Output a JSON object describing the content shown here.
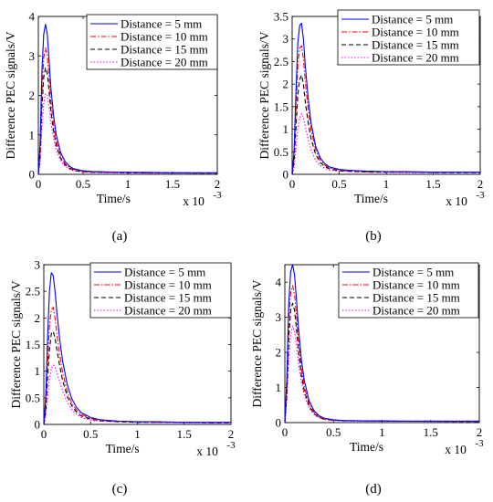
{
  "figure": {
    "legend_entries": [
      "Distance = 5 mm",
      "Distance = 10 mm",
      "Distance = 15 mm",
      "Distance = 20 mm"
    ],
    "series_colors": [
      "#0000ff",
      "#ff0000",
      "#000000",
      "#ff00ff"
    ],
    "series_dash": [
      "solid",
      "dashdot",
      "dashed",
      "dotted"
    ]
  },
  "chart_data": [
    {
      "type": "line",
      "panel_label": "(a)",
      "ylabel": "Difference PEC signals/V",
      "xlabel": "Time/s",
      "x_multiplier": "x 10",
      "x_multiplier_exp": "-3",
      "xlim": [
        0,
        2
      ],
      "ylim": [
        0,
        4
      ],
      "xticks": [
        "0",
        "0.5",
        "1",
        "1.5",
        "2"
      ],
      "yticks": [
        "0",
        "1",
        "2",
        "3",
        "4"
      ],
      "x": [
        0,
        0.02,
        0.04,
        0.06,
        0.08,
        0.1,
        0.12,
        0.14,
        0.17,
        0.2,
        0.25,
        0.3,
        0.35,
        0.4,
        0.5,
        0.6,
        0.8,
        1.0,
        1.2,
        1.5,
        1.8,
        2.0
      ],
      "series": [
        {
          "name": "Distance = 5 mm",
          "values": [
            0,
            0.8,
            2.6,
            3.55,
            3.8,
            3.55,
            2.9,
            2.2,
            1.5,
            1.0,
            0.55,
            0.32,
            0.2,
            0.14,
            0.09,
            0.07,
            0.06,
            0.05,
            0.05,
            0.04,
            0.04,
            0.04
          ]
        },
        {
          "name": "Distance = 10 mm",
          "values": [
            0,
            0.6,
            2.1,
            2.95,
            3.2,
            3.0,
            2.45,
            1.85,
            1.25,
            0.85,
            0.46,
            0.27,
            0.17,
            0.12,
            0.08,
            0.06,
            0.05,
            0.05,
            0.04,
            0.04,
            0.04,
            0.04
          ]
        },
        {
          "name": "Distance = 15 mm",
          "values": [
            0,
            0.45,
            1.7,
            2.45,
            2.7,
            2.55,
            2.1,
            1.6,
            1.1,
            0.74,
            0.4,
            0.24,
            0.15,
            0.1,
            0.07,
            0.05,
            0.05,
            0.04,
            0.04,
            0.04,
            0.03,
            0.03
          ]
        },
        {
          "name": "Distance = 20 mm",
          "values": [
            0,
            0.3,
            1.15,
            1.8,
            2.05,
            2.0,
            1.7,
            1.3,
            0.92,
            0.62,
            0.34,
            0.2,
            0.13,
            0.09,
            0.06,
            0.05,
            0.04,
            0.04,
            0.03,
            0.03,
            0.03,
            0.03
          ]
        }
      ]
    },
    {
      "type": "line",
      "panel_label": "(b)",
      "ylabel": "Difference PEC signals/V",
      "xlabel": "Time/s",
      "x_multiplier": "x 10",
      "x_multiplier_exp": "-3",
      "xlim": [
        0,
        2
      ],
      "ylim": [
        0,
        3.5
      ],
      "xticks": [
        "0",
        "0.5",
        "1",
        "1.5",
        "2"
      ],
      "yticks": [
        "0",
        "0.5",
        "1",
        "1.5",
        "2",
        "2.5",
        "3",
        "3.5"
      ],
      "x": [
        0,
        0.02,
        0.04,
        0.06,
        0.08,
        0.1,
        0.12,
        0.14,
        0.17,
        0.2,
        0.25,
        0.3,
        0.35,
        0.4,
        0.5,
        0.6,
        0.8,
        1.0,
        1.2,
        1.5,
        1.8,
        2.0
      ],
      "series": [
        {
          "name": "Distance = 5 mm",
          "values": [
            0,
            0.5,
            1.8,
            2.9,
            3.3,
            3.35,
            3.0,
            2.4,
            1.7,
            1.15,
            0.62,
            0.36,
            0.23,
            0.16,
            0.11,
            0.09,
            0.07,
            0.06,
            0.06,
            0.05,
            0.05,
            0.05
          ]
        },
        {
          "name": "Distance = 10 mm",
          "values": [
            0,
            0.4,
            1.4,
            2.4,
            2.8,
            2.85,
            2.55,
            2.05,
            1.45,
            1.0,
            0.54,
            0.31,
            0.2,
            0.14,
            0.1,
            0.08,
            0.06,
            0.06,
            0.05,
            0.05,
            0.05,
            0.05
          ]
        },
        {
          "name": "Distance = 15 mm",
          "values": [
            0,
            0.28,
            1.0,
            1.75,
            2.1,
            2.2,
            2.0,
            1.6,
            1.15,
            0.8,
            0.44,
            0.26,
            0.17,
            0.12,
            0.08,
            0.07,
            0.05,
            0.05,
            0.05,
            0.04,
            0.04,
            0.04
          ]
        },
        {
          "name": "Distance = 20 mm",
          "values": [
            0,
            0.15,
            0.55,
            1.0,
            1.25,
            1.35,
            1.25,
            1.05,
            0.78,
            0.55,
            0.31,
            0.19,
            0.13,
            0.09,
            0.07,
            0.06,
            0.05,
            0.04,
            0.04,
            0.04,
            0.04,
            0.04
          ]
        }
      ]
    },
    {
      "type": "line",
      "panel_label": "(c)",
      "ylabel": "Difference PEC signals/V",
      "xlabel": "Time/s",
      "x_multiplier": "x 10",
      "x_multiplier_exp": "-3",
      "xlim": [
        0,
        2
      ],
      "ylim": [
        0,
        3
      ],
      "xticks": [
        "0",
        "0.5",
        "1",
        "1.5",
        "2"
      ],
      "yticks": [
        "0",
        "0.5",
        "1",
        "1.5",
        "2",
        "2.5",
        "3"
      ],
      "x": [
        0,
        0.02,
        0.04,
        0.06,
        0.08,
        0.1,
        0.12,
        0.14,
        0.17,
        0.2,
        0.25,
        0.3,
        0.35,
        0.4,
        0.5,
        0.6,
        0.8,
        1.0,
        1.2,
        1.5,
        1.8,
        2.0
      ],
      "series": [
        {
          "name": "Distance = 5 mm",
          "values": [
            0,
            0.5,
            1.6,
            2.5,
            2.85,
            2.8,
            2.5,
            2.1,
            1.6,
            1.2,
            0.75,
            0.48,
            0.32,
            0.22,
            0.13,
            0.09,
            0.06,
            0.05,
            0.05,
            0.04,
            0.04,
            0.04
          ]
        },
        {
          "name": "Distance = 10 mm",
          "values": [
            0,
            0.35,
            1.15,
            1.85,
            2.15,
            2.2,
            2.0,
            1.7,
            1.3,
            0.98,
            0.62,
            0.4,
            0.27,
            0.19,
            0.11,
            0.08,
            0.06,
            0.05,
            0.04,
            0.04,
            0.04,
            0.04
          ]
        },
        {
          "name": "Distance = 15 mm",
          "values": [
            0,
            0.25,
            0.85,
            1.4,
            1.7,
            1.75,
            1.62,
            1.4,
            1.1,
            0.83,
            0.53,
            0.35,
            0.23,
            0.16,
            0.1,
            0.07,
            0.05,
            0.04,
            0.04,
            0.04,
            0.03,
            0.03
          ]
        },
        {
          "name": "Distance = 20 mm",
          "values": [
            0,
            0.15,
            0.5,
            0.85,
            1.05,
            1.12,
            1.08,
            0.97,
            0.8,
            0.63,
            0.42,
            0.28,
            0.19,
            0.13,
            0.08,
            0.06,
            0.05,
            0.04,
            0.04,
            0.03,
            0.03,
            0.03
          ]
        }
      ]
    },
    {
      "type": "line",
      "panel_label": "(d)",
      "ylabel": "Difference PEC signals/V",
      "xlabel": "Time/s",
      "x_multiplier": "x 10",
      "x_multiplier_exp": "-3",
      "xlim": [
        0,
        2
      ],
      "ylim": [
        0,
        4.5
      ],
      "xticks": [
        "0",
        "0.5",
        "1",
        "1.5",
        "2"
      ],
      "yticks": [
        "0",
        "1",
        "2",
        "3",
        "4"
      ],
      "x": [
        0,
        0.02,
        0.04,
        0.06,
        0.08,
        0.1,
        0.12,
        0.14,
        0.17,
        0.2,
        0.25,
        0.3,
        0.35,
        0.4,
        0.5,
        0.6,
        0.8,
        1.0,
        1.2,
        1.5,
        1.8,
        2.0
      ],
      "series": [
        {
          "name": "Distance = 5 mm",
          "values": [
            0,
            1.2,
            3.4,
            4.3,
            4.5,
            4.2,
            3.5,
            2.7,
            1.8,
            1.2,
            0.62,
            0.34,
            0.2,
            0.13,
            0.08,
            0.06,
            0.05,
            0.05,
            0.04,
            0.04,
            0.04,
            0.04
          ]
        },
        {
          "name": "Distance = 10 mm",
          "values": [
            0,
            1.0,
            2.9,
            3.7,
            3.9,
            3.65,
            3.05,
            2.35,
            1.55,
            1.02,
            0.53,
            0.29,
            0.17,
            0.11,
            0.07,
            0.06,
            0.05,
            0.04,
            0.04,
            0.04,
            0.04,
            0.04
          ]
        },
        {
          "name": "Distance = 15 mm",
          "values": [
            0,
            0.8,
            2.4,
            3.2,
            3.4,
            3.2,
            2.65,
            2.05,
            1.35,
            0.9,
            0.47,
            0.26,
            0.15,
            0.1,
            0.07,
            0.05,
            0.05,
            0.04,
            0.04,
            0.04,
            0.03,
            0.03
          ]
        },
        {
          "name": "Distance = 20 mm",
          "values": [
            0,
            0.6,
            1.8,
            2.5,
            2.75,
            2.6,
            2.2,
            1.7,
            1.15,
            0.77,
            0.41,
            0.23,
            0.14,
            0.09,
            0.06,
            0.05,
            0.04,
            0.04,
            0.04,
            0.03,
            0.03,
            0.03
          ]
        }
      ]
    }
  ]
}
